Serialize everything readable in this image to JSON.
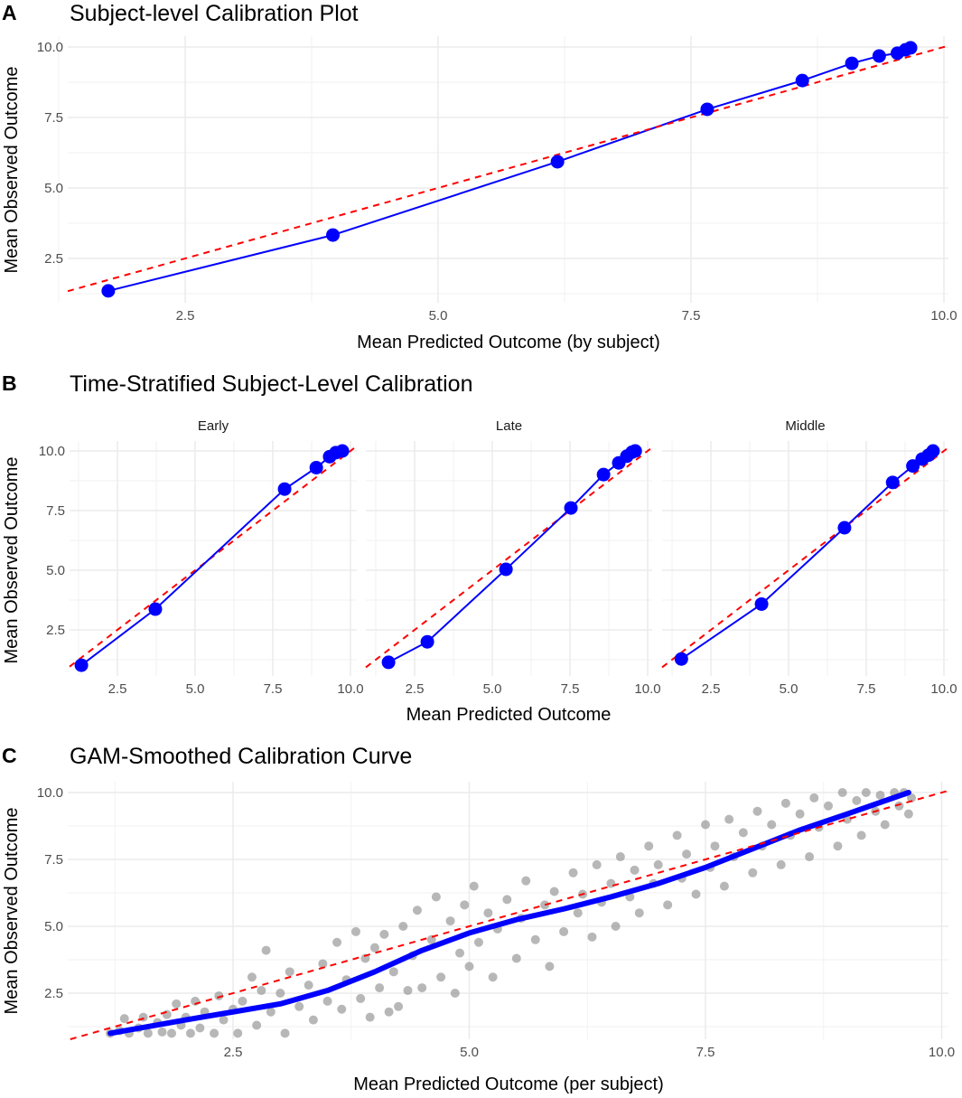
{
  "chart_data": [
    {
      "panel": "A",
      "type": "line",
      "title": "Subject-level Calibration Plot",
      "xlabel": "Mean Predicted Outcome (by subject)",
      "ylabel": "Mean Observed Outcome",
      "xlim": [
        1.33,
        10.04
      ],
      "ylim": [
        1.0,
        10.35
      ],
      "xticks": [
        "2.5",
        "5.0",
        "7.5",
        "10.0"
      ],
      "yticks": [
        "2.5",
        "5.0",
        "7.5",
        "10.0"
      ],
      "grid": true,
      "reference_line": {
        "slope": 1,
        "intercept": 0,
        "style": "dashed",
        "color": "#ff0000"
      },
      "series": [
        {
          "name": "calibration",
          "color": "#0000ff",
          "points": [
            [
              1.74,
              1.35
            ],
            [
              3.96,
              3.33
            ],
            [
              6.18,
              5.93
            ],
            [
              7.66,
              7.79
            ],
            [
              8.6,
              8.81
            ],
            [
              9.09,
              9.42
            ],
            [
              9.36,
              9.68
            ],
            [
              9.54,
              9.78
            ],
            [
              9.62,
              9.9
            ],
            [
              9.67,
              9.97
            ]
          ]
        }
      ]
    },
    {
      "panel": "B",
      "type": "line",
      "title": "Time-Stratified Subject-Level Calibration",
      "xlabel": "Mean Predicted Outcome",
      "ylabel": "Mean Observed Outcome",
      "xticks": [
        "2.5",
        "5.0",
        "7.5",
        "10.0"
      ],
      "yticks": [
        "2.5",
        "5.0",
        "7.5",
        "10.0"
      ],
      "grid": true,
      "reference_line": {
        "slope": 1,
        "intercept": 0,
        "style": "dashed",
        "color": "#ff0000"
      },
      "facets": [
        {
          "label": "Early",
          "points": [
            [
              1.34,
              1.02
            ],
            [
              3.72,
              3.37
            ],
            [
              7.88,
              8.4
            ],
            [
              8.9,
              9.3
            ],
            [
              9.33,
              9.76
            ],
            [
              9.53,
              9.93
            ],
            [
              9.74,
              10.0
            ]
          ]
        },
        {
          "label": "Late",
          "points": [
            [
              1.66,
              1.14
            ],
            [
              2.91,
              2.0
            ],
            [
              5.44,
              5.04
            ],
            [
              7.53,
              7.61
            ],
            [
              8.58,
              9.01
            ],
            [
              9.07,
              9.5
            ],
            [
              9.33,
              9.78
            ],
            [
              9.5,
              9.95
            ],
            [
              9.6,
              10.0
            ]
          ]
        },
        {
          "label": "Middle",
          "points": [
            [
              1.55,
              1.28
            ],
            [
              4.13,
              3.58
            ],
            [
              6.8,
              6.78
            ],
            [
              8.35,
              8.68
            ],
            [
              9.0,
              9.37
            ],
            [
              9.3,
              9.66
            ],
            [
              9.5,
              9.82
            ],
            [
              9.65,
              10.0
            ]
          ]
        }
      ]
    },
    {
      "panel": "C",
      "type": "scatter",
      "title": "GAM-Smoothed Calibration Curve",
      "xlabel": "Mean Predicted Outcome (per subject)",
      "ylabel": "Mean Observed Outcome",
      "xticks": [
        "2.5",
        "5.0",
        "7.5",
        "10.0"
      ],
      "yticks": [
        "2.5",
        "5.0",
        "7.5",
        "10.0"
      ],
      "grid": true,
      "reference_line": {
        "slope": 1,
        "intercept": 0,
        "style": "dashed",
        "color": "#ff0000"
      },
      "points_color": "#999999",
      "curve_color": "#0000ff",
      "points": [
        [
          1.2,
          1.0
        ],
        [
          1.3,
          1.1
        ],
        [
          1.35,
          1.55
        ],
        [
          1.4,
          1.0
        ],
        [
          1.5,
          1.2
        ],
        [
          1.55,
          1.6
        ],
        [
          1.6,
          1.0
        ],
        [
          1.7,
          1.4
        ],
        [
          1.75,
          1.05
        ],
        [
          1.8,
          1.7
        ],
        [
          1.85,
          1.0
        ],
        [
          1.9,
          2.1
        ],
        [
          1.95,
          1.3
        ],
        [
          2.0,
          1.6
        ],
        [
          2.05,
          1.0
        ],
        [
          2.1,
          2.2
        ],
        [
          2.15,
          1.2
        ],
        [
          2.2,
          1.8
        ],
        [
          2.3,
          1.0
        ],
        [
          2.35,
          2.4
        ],
        [
          2.4,
          1.5
        ],
        [
          2.5,
          1.9
        ],
        [
          2.55,
          1.0
        ],
        [
          2.6,
          2.2
        ],
        [
          2.7,
          3.1
        ],
        [
          2.75,
          1.3
        ],
        [
          2.8,
          2.6
        ],
        [
          2.85,
          4.1
        ],
        [
          2.9,
          1.8
        ],
        [
          3.0,
          2.5
        ],
        [
          3.05,
          1.0
        ],
        [
          3.1,
          3.3
        ],
        [
          3.2,
          2.0
        ],
        [
          3.3,
          2.8
        ],
        [
          3.35,
          1.5
        ],
        [
          3.45,
          3.6
        ],
        [
          3.5,
          2.2
        ],
        [
          3.6,
          4.4
        ],
        [
          3.65,
          1.9
        ],
        [
          3.7,
          3.0
        ],
        [
          3.8,
          4.8
        ],
        [
          3.85,
          2.3
        ],
        [
          3.9,
          3.8
        ],
        [
          3.95,
          1.6
        ],
        [
          4.0,
          4.2
        ],
        [
          4.05,
          2.7
        ],
        [
          4.1,
          4.7
        ],
        [
          4.15,
          1.8
        ],
        [
          4.2,
          3.3
        ],
        [
          4.25,
          2.0
        ],
        [
          4.3,
          5.0
        ],
        [
          4.35,
          2.6
        ],
        [
          4.4,
          3.9
        ],
        [
          4.45,
          5.6
        ],
        [
          4.5,
          2.7
        ],
        [
          4.6,
          4.5
        ],
        [
          4.65,
          6.1
        ],
        [
          4.7,
          3.1
        ],
        [
          4.8,
          5.2
        ],
        [
          4.85,
          2.5
        ],
        [
          4.9,
          4.0
        ],
        [
          4.95,
          5.8
        ],
        [
          5.0,
          3.5
        ],
        [
          5.05,
          6.5
        ],
        [
          5.1,
          4.4
        ],
        [
          5.2,
          5.5
        ],
        [
          5.25,
          3.1
        ],
        [
          5.3,
          4.9
        ],
        [
          5.4,
          6.0
        ],
        [
          5.5,
          3.8
        ],
        [
          5.55,
          5.3
        ],
        [
          5.6,
          6.7
        ],
        [
          5.7,
          4.5
        ],
        [
          5.8,
          5.8
        ],
        [
          5.85,
          3.5
        ],
        [
          5.9,
          6.3
        ],
        [
          6.0,
          4.8
        ],
        [
          6.1,
          7.0
        ],
        [
          6.15,
          5.5
        ],
        [
          6.2,
          6.2
        ],
        [
          6.3,
          4.6
        ],
        [
          6.35,
          7.3
        ],
        [
          6.4,
          5.9
        ],
        [
          6.5,
          6.6
        ],
        [
          6.55,
          5.0
        ],
        [
          6.6,
          7.6
        ],
        [
          6.7,
          6.1
        ],
        [
          6.75,
          7.1
        ],
        [
          6.8,
          5.5
        ],
        [
          6.9,
          8.0
        ],
        [
          6.95,
          6.6
        ],
        [
          7.0,
          7.3
        ],
        [
          7.1,
          5.8
        ],
        [
          7.2,
          8.4
        ],
        [
          7.25,
          6.8
        ],
        [
          7.3,
          7.7
        ],
        [
          7.4,
          6.2
        ],
        [
          7.5,
          8.8
        ],
        [
          7.55,
          7.2
        ],
        [
          7.6,
          8.0
        ],
        [
          7.7,
          6.5
        ],
        [
          7.75,
          9.0
        ],
        [
          7.8,
          7.6
        ],
        [
          7.9,
          8.5
        ],
        [
          8.0,
          7.0
        ],
        [
          8.05,
          9.3
        ],
        [
          8.1,
          8.0
        ],
        [
          8.2,
          8.8
        ],
        [
          8.3,
          7.3
        ],
        [
          8.35,
          9.6
        ],
        [
          8.4,
          8.4
        ],
        [
          8.5,
          9.2
        ],
        [
          8.6,
          7.6
        ],
        [
          8.65,
          9.8
        ],
        [
          8.7,
          8.7
        ],
        [
          8.8,
          9.5
        ],
        [
          8.9,
          8.0
        ],
        [
          8.95,
          10.0
        ],
        [
          9.0,
          9.0
        ],
        [
          9.1,
          9.7
        ],
        [
          9.15,
          8.4
        ],
        [
          9.2,
          10.0
        ],
        [
          9.3,
          9.3
        ],
        [
          9.35,
          9.9
        ],
        [
          9.4,
          8.8
        ],
        [
          9.5,
          10.0
        ],
        [
          9.55,
          9.5
        ],
        [
          9.6,
          10.0
        ],
        [
          9.65,
          9.2
        ],
        [
          9.68,
          9.8
        ]
      ],
      "gam_curve": [
        [
          1.2,
          1.0
        ],
        [
          2,
          1.5
        ],
        [
          3,
          2.1
        ],
        [
          3.5,
          2.6
        ],
        [
          4,
          3.3
        ],
        [
          4.5,
          4.1
        ],
        [
          5,
          4.75
        ],
        [
          5.5,
          5.25
        ],
        [
          6,
          5.65
        ],
        [
          6.5,
          6.1
        ],
        [
          7,
          6.6
        ],
        [
          7.5,
          7.2
        ],
        [
          8,
          7.9
        ],
        [
          8.5,
          8.6
        ],
        [
          9,
          9.2
        ],
        [
          9.65,
          10.0
        ]
      ]
    }
  ]
}
